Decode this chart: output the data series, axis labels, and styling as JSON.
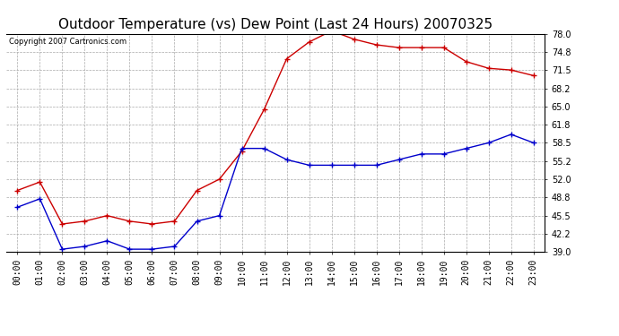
{
  "title": "Outdoor Temperature (vs) Dew Point (Last 24 Hours) 20070325",
  "copyright": "Copyright 2007 Cartronics.com",
  "hours": [
    "00:00",
    "01:00",
    "02:00",
    "03:00",
    "04:00",
    "05:00",
    "06:00",
    "07:00",
    "08:00",
    "09:00",
    "10:00",
    "11:00",
    "12:00",
    "13:00",
    "14:00",
    "15:00",
    "16:00",
    "17:00",
    "18:00",
    "19:00",
    "20:00",
    "21:00",
    "22:00",
    "23:00"
  ],
  "temp": [
    50.0,
    51.5,
    44.0,
    44.5,
    45.5,
    44.5,
    44.0,
    44.5,
    50.0,
    52.0,
    57.0,
    64.5,
    73.5,
    76.5,
    78.5,
    77.0,
    76.0,
    75.5,
    75.5,
    75.5,
    73.0,
    71.8,
    71.5,
    70.5
  ],
  "dew": [
    47.0,
    48.5,
    39.5,
    40.0,
    41.0,
    39.5,
    39.5,
    40.0,
    44.5,
    45.5,
    57.5,
    57.5,
    55.5,
    54.5,
    54.5,
    54.5,
    54.5,
    55.5,
    56.5,
    56.5,
    57.5,
    58.5,
    60.0,
    58.5
  ],
  "temp_color": "#cc0000",
  "dew_color": "#0000cc",
  "bg_color": "#ffffff",
  "grid_color": "#aaaaaa",
  "yticks": [
    39.0,
    42.2,
    45.5,
    48.8,
    52.0,
    55.2,
    58.5,
    61.8,
    65.0,
    68.2,
    71.5,
    74.8,
    78.0
  ],
  "ymin": 39.0,
  "ymax": 78.0,
  "title_fontsize": 11,
  "copyright_fontsize": 6,
  "tick_fontsize": 7,
  "figwidth": 6.9,
  "figheight": 3.75,
  "dpi": 100
}
